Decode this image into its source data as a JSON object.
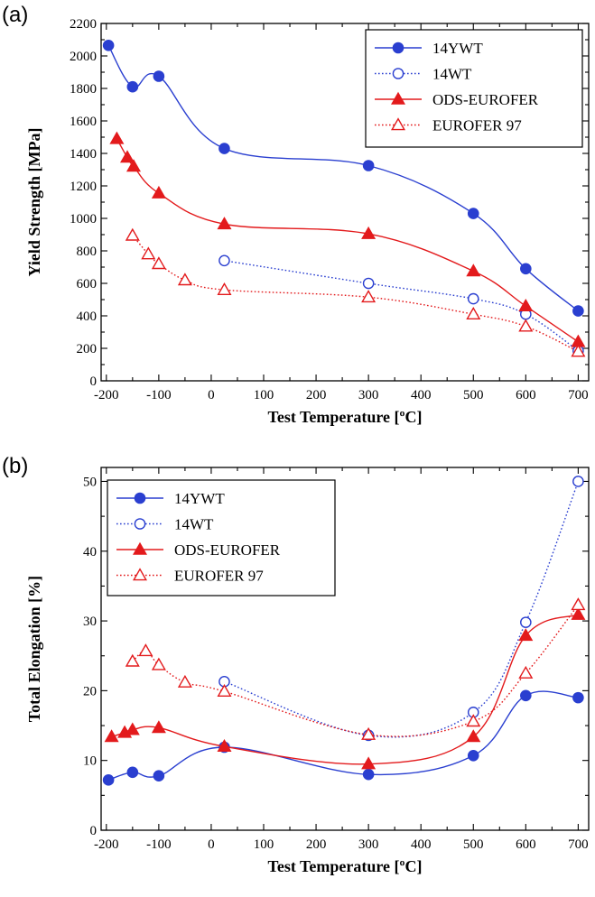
{
  "chart_data": [
    {
      "panel_label": "(a)",
      "type": "line",
      "xlabel": "Test Temperature [ºC]",
      "ylabel": "Yield Strength [MPa]",
      "xlim": [
        -210,
        720
      ],
      "ylim": [
        0,
        2200
      ],
      "xticks": [
        -200,
        -100,
        0,
        100,
        200,
        300,
        400,
        500,
        600,
        700
      ],
      "yticks": [
        0,
        200,
        400,
        600,
        800,
        1000,
        1200,
        1400,
        1600,
        1800,
        2000,
        2200
      ],
      "x_tick_labels": [
        "-200",
        "-100",
        "0",
        "100",
        "200",
        "300",
        "400",
        "500",
        "600",
        "700"
      ],
      "y_tick_labels": [
        "0",
        "200",
        "400",
        "600",
        "800",
        "1000",
        "1200",
        "1400",
        "1600",
        "1800",
        "2000",
        "2200"
      ],
      "legend_position": "top-right",
      "grid": false,
      "series": [
        {
          "name": "14YWT",
          "marker": "filled-circle",
          "line": "solid",
          "color": "#2a3fd0",
          "points": [
            [
              -196,
              2065
            ],
            [
              -150,
              1810
            ],
            [
              -100,
              1875
            ],
            [
              25,
              1430
            ],
            [
              300,
              1325
            ],
            [
              500,
              1030
            ],
            [
              600,
              690
            ],
            [
              700,
              430
            ]
          ]
        },
        {
          "name": "14WT",
          "marker": "open-circle",
          "line": "dotted",
          "color": "#2a3fd0",
          "points": [
            [
              25,
              740
            ],
            [
              300,
              600
            ],
            [
              500,
              505
            ],
            [
              600,
              410
            ],
            [
              700,
              185
            ]
          ]
        },
        {
          "name": "ODS-EUROFER",
          "marker": "filled-triangle",
          "line": "solid",
          "color": "#e31a1c",
          "points": [
            [
              -180,
              1490
            ],
            [
              -160,
              1375
            ],
            [
              -148,
              1320
            ],
            [
              -100,
              1155
            ],
            [
              25,
              965
            ],
            [
              300,
              905
            ],
            [
              500,
              675
            ],
            [
              600,
              460
            ],
            [
              700,
              240
            ]
          ]
        },
        {
          "name": "EUROFER 97",
          "marker": "open-triangle",
          "line": "dotted",
          "color": "#e31a1c",
          "points": [
            [
              -150,
              895
            ],
            [
              -120,
              780
            ],
            [
              -100,
              720
            ],
            [
              -50,
              620
            ],
            [
              25,
              560
            ],
            [
              300,
              515
            ],
            [
              500,
              410
            ],
            [
              600,
              335
            ],
            [
              700,
              180
            ]
          ]
        }
      ]
    },
    {
      "panel_label": "(b)",
      "type": "line",
      "xlabel": "Test Temperature [ºC]",
      "ylabel": "Total Elongation [%]",
      "xlim": [
        -210,
        720
      ],
      "ylim": [
        0,
        52
      ],
      "xticks": [
        -200,
        -100,
        0,
        100,
        200,
        300,
        400,
        500,
        600,
        700
      ],
      "yticks": [
        0,
        10,
        20,
        30,
        40,
        50
      ],
      "x_tick_labels": [
        "-200",
        "-100",
        "0",
        "100",
        "200",
        "300",
        "400",
        "500",
        "600",
        "700"
      ],
      "y_tick_labels": [
        "0",
        "10",
        "20",
        "30",
        "40",
        "50"
      ],
      "legend_position": "top-left",
      "grid": false,
      "series": [
        {
          "name": "14YWT",
          "marker": "filled-circle",
          "line": "solid",
          "color": "#2a3fd0",
          "points": [
            [
              -196,
              7.2
            ],
            [
              -150,
              8.3
            ],
            [
              -100,
              7.8
            ],
            [
              25,
              11.9
            ],
            [
              300,
              8.0
            ],
            [
              500,
              10.7
            ],
            [
              600,
              19.3
            ],
            [
              700,
              19.0
            ]
          ]
        },
        {
          "name": "14WT",
          "marker": "open-circle",
          "line": "dotted",
          "color": "#2a3fd0",
          "points": [
            [
              25,
              21.3
            ],
            [
              300,
              13.6
            ],
            [
              500,
              16.9
            ],
            [
              600,
              29.8
            ],
            [
              700,
              50.0
            ]
          ]
        },
        {
          "name": "ODS-EUROFER",
          "marker": "filled-triangle",
          "line": "solid",
          "color": "#e31a1c",
          "points": [
            [
              -190,
              13.4
            ],
            [
              -165,
              14.0
            ],
            [
              -150,
              14.4
            ],
            [
              -100,
              14.7
            ],
            [
              25,
              12.0
            ],
            [
              300,
              9.5
            ],
            [
              500,
              13.4
            ],
            [
              600,
              27.9
            ],
            [
              700,
              30.9
            ]
          ]
        },
        {
          "name": "EUROFER 97",
          "marker": "open-triangle",
          "line": "dotted",
          "color": "#e31a1c",
          "points": [
            [
              -150,
              24.2
            ],
            [
              -125,
              25.7
            ],
            [
              -100,
              23.7
            ],
            [
              -50,
              21.2
            ],
            [
              25,
              19.9
            ],
            [
              300,
              13.7
            ],
            [
              500,
              15.6
            ],
            [
              600,
              22.5
            ],
            [
              700,
              32.3
            ]
          ]
        }
      ]
    }
  ]
}
